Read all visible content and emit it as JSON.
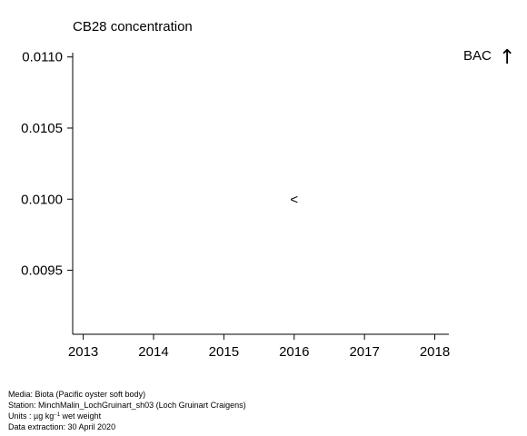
{
  "chart_data": {
    "type": "scatter",
    "title": "CB28 concentration",
    "xlabel": "",
    "ylabel": "",
    "x_ticks": [
      "2013",
      "2014",
      "2015",
      "2016",
      "2017",
      "2018"
    ],
    "y_ticks": [
      "0.0095",
      "0.0100",
      "0.0105",
      "0.0110"
    ],
    "xlim": [
      2012.85,
      2018.2
    ],
    "ylim": [
      0.00905,
      0.01103
    ],
    "grid": false,
    "points": [
      {
        "x": 2016,
        "y": 0.01,
        "marker": "<"
      }
    ],
    "reference_line": {
      "label": "BAC",
      "arrow": "↑"
    }
  },
  "footer": {
    "media": "Media: Biota (Pacific oyster soft body)",
    "station": "Station: MinchMalin_LochGruinart_sh03 (Loch Gruinart Craigens)",
    "units_prefix": "Units : µg kg",
    "units_sup": "−1",
    "units_suffix": " wet weight",
    "extraction": "Data extraction: 30 April 2020"
  }
}
